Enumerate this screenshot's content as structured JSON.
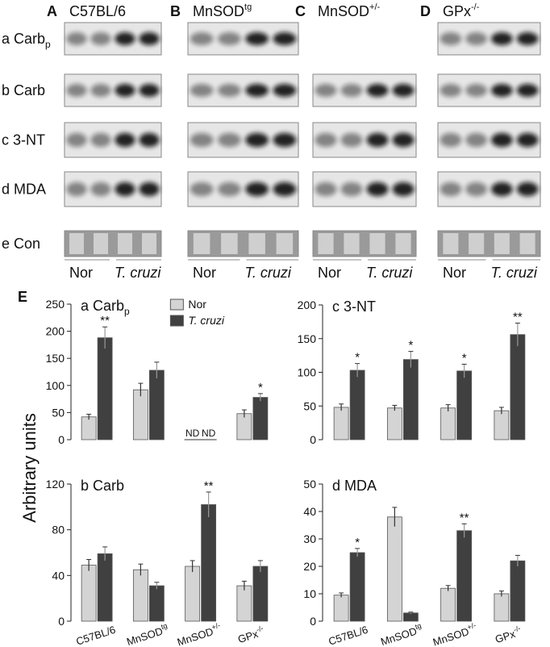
{
  "blots": {
    "panels": [
      {
        "letter": "A",
        "label": "C57BL/6"
      },
      {
        "letter": "B",
        "label": "MnSOD",
        "sup": "tg"
      },
      {
        "letter": "C",
        "label": "MnSOD",
        "sup": "+/-"
      },
      {
        "letter": "D",
        "label": "GPx",
        "sup": "-/-"
      }
    ],
    "rows": [
      {
        "label": "a Carb",
        "sub": "p"
      },
      {
        "label": "b Carb"
      },
      {
        "label": "c 3-NT"
      },
      {
        "label": "d MDA"
      },
      {
        "label": "e Con"
      }
    ],
    "groups": [
      "Nor",
      "T. cruzi"
    ]
  },
  "panel_letter": "E",
  "y_axis_label": "Arbitrary units",
  "chart_data": [
    {
      "type": "bar",
      "title": "a Carb",
      "title_subscript": "p",
      "ylim": [
        0,
        250
      ],
      "yticks": [
        0,
        50,
        100,
        150,
        200,
        250
      ],
      "categories": [
        null,
        null,
        null,
        null
      ],
      "legend": "upper center",
      "series": [
        {
          "name": "Nor",
          "color": "#d4d4d4",
          "values": [
            42,
            92,
            null,
            48
          ],
          "errors": [
            5,
            12,
            null,
            7
          ],
          "value_labels": [
            null,
            null,
            "ND",
            null
          ]
        },
        {
          "name": "T. cruzi",
          "color": "#404040",
          "values": [
            188,
            128,
            null,
            78
          ],
          "errors": [
            20,
            15,
            null,
            7
          ],
          "value_labels": [
            null,
            null,
            "ND",
            null
          ],
          "significance": [
            "**",
            null,
            null,
            "*"
          ]
        }
      ]
    },
    {
      "type": "bar",
      "title": "c 3-NT",
      "ylim": [
        0,
        200
      ],
      "yticks": [
        0,
        50,
        100,
        150,
        200
      ],
      "categories": [
        null,
        null,
        null,
        null
      ],
      "series": [
        {
          "color": "#d4d4d4",
          "values": [
            48,
            47,
            47,
            43
          ],
          "errors": [
            5,
            4,
            5,
            5
          ]
        },
        {
          "color": "#404040",
          "values": [
            103,
            119,
            102,
            156
          ],
          "errors": [
            10,
            12,
            10,
            17
          ],
          "significance": [
            "*",
            "*",
            "*",
            "**"
          ]
        }
      ]
    },
    {
      "type": "bar",
      "title": "b Carb",
      "ylim": [
        0,
        120
      ],
      "yticks": [
        0,
        40,
        80,
        120
      ],
      "categories": [
        "C57BL/6",
        "MnSOD",
        "MnSOD",
        "GPx"
      ],
      "category_superscripts": [
        null,
        "tg",
        "+/-",
        "-/-"
      ],
      "series": [
        {
          "color": "#d4d4d4",
          "values": [
            49,
            45,
            48,
            31
          ],
          "errors": [
            5,
            5,
            5,
            4
          ]
        },
        {
          "color": "#404040",
          "values": [
            59,
            31,
            102,
            48
          ],
          "errors": [
            6,
            3,
            11,
            5
          ],
          "significance": [
            null,
            null,
            "**",
            null
          ]
        }
      ]
    },
    {
      "type": "bar",
      "title": "d MDA",
      "ylim": [
        0,
        50
      ],
      "yticks": [
        0,
        10,
        20,
        30,
        40,
        50
      ],
      "categories": [
        "C57BL/6",
        "MnSOD",
        "MnSOD",
        "GPx"
      ],
      "category_superscripts": [
        null,
        "tg",
        "+/-",
        "-/-"
      ],
      "series": [
        {
          "color": "#d4d4d4",
          "values": [
            9.5,
            38,
            12,
            10
          ],
          "errors": [
            0.8,
            3.5,
            1,
            1
          ]
        },
        {
          "color": "#404040",
          "values": [
            25,
            3,
            33,
            22
          ],
          "errors": [
            1.5,
            0.3,
            2.5,
            2
          ],
          "significance": [
            "*",
            null,
            "**",
            null
          ]
        }
      ]
    }
  ]
}
